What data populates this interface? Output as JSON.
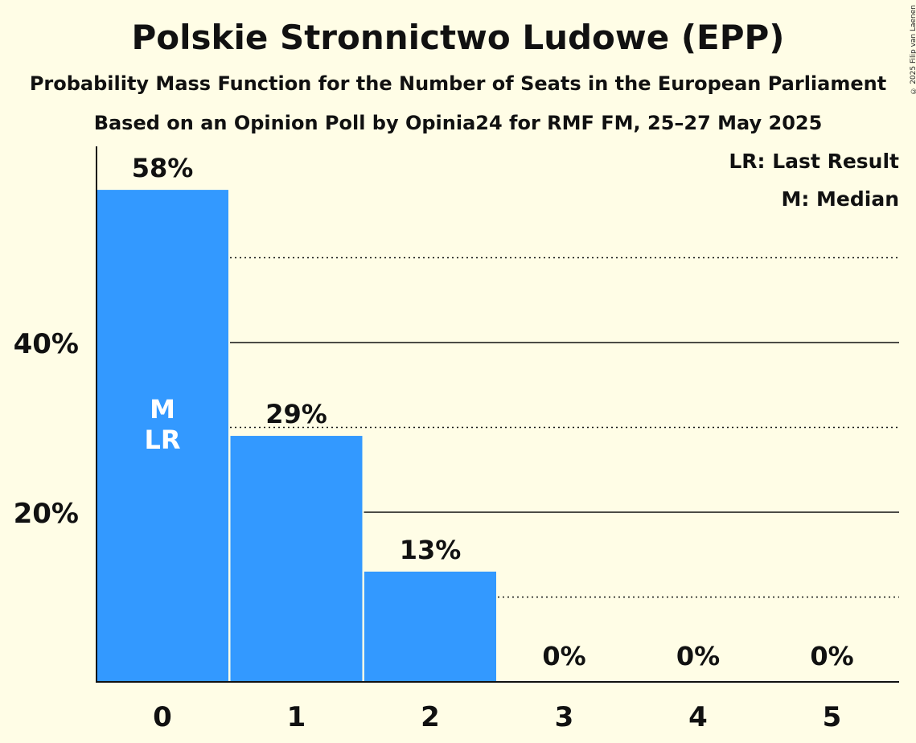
{
  "chart_data": {
    "type": "bar",
    "title": "Polskie Stronnictwo Ludowe (EPP)",
    "subtitle": "Probability Mass Function for the Number of Seats in the European Parliament",
    "subtitle2": "Based on an Opinion Poll by Opinia24 for RMF FM, 25–27 May 2025",
    "categories": [
      "0",
      "1",
      "2",
      "3",
      "4",
      "5"
    ],
    "values": [
      58,
      29,
      13,
      0,
      0,
      0
    ],
    "value_labels": [
      "58%",
      "29%",
      "13%",
      "0%",
      "0%",
      "0%"
    ],
    "ylim": [
      0,
      63
    ],
    "yticks": [
      20,
      40
    ],
    "ytick_labels": [
      "20%",
      "40%"
    ],
    "minor_gridlines": [
      10,
      30,
      50
    ],
    "bar_color": "#3399ff",
    "markers": [
      {
        "category": "0",
        "labels": [
          "M",
          "LR"
        ]
      }
    ],
    "legend": [
      "LR: Last Result",
      "M: Median"
    ],
    "legend_position": "top-right"
  },
  "copyright": "© 2025 Filip van Laenen"
}
